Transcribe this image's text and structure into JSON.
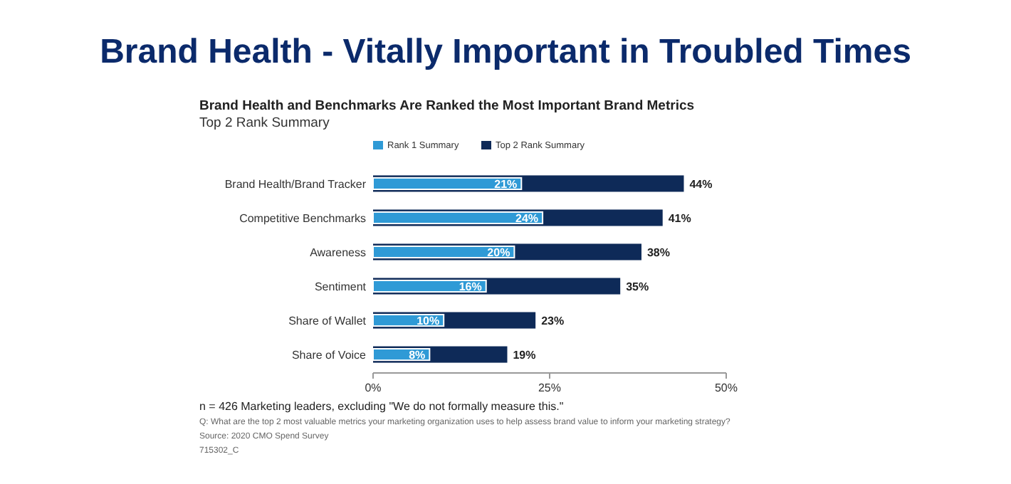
{
  "chart_data": {
    "type": "bar",
    "orientation": "horizontal",
    "title": "Brand Health - Vitally Important in Troubled Times",
    "subtitle": "Brand Health and Benchmarks Are Ranked the Most Important Brand Metrics",
    "categories": [
      "Brand Health/Brand Tracker",
      "Competitive Benchmarks",
      "Awareness",
      "Sentiment",
      "Share of Wallet",
      "Share of Voice"
    ],
    "series": [
      {
        "name": "Rank 1 Summary",
        "color": "#2f9ad6",
        "values": [
          21,
          24,
          20,
          16,
          10,
          8
        ],
        "value_labels": [
          "21%",
          "24%",
          "20%",
          "16%",
          "10%",
          "8%"
        ]
      },
      {
        "name": "Top 2 Rank Summary",
        "color": "#0e2a58",
        "values": [
          44,
          41,
          38,
          35,
          23,
          19
        ],
        "value_labels": [
          "44%",
          "41%",
          "38%",
          "35%",
          "23%",
          "19%"
        ]
      }
    ],
    "xlim": [
      0,
      50
    ],
    "xticks": [
      {
        "value": 0,
        "label": "0%"
      },
      {
        "value": 25,
        "label": "25%"
      },
      {
        "value": 50,
        "label": "50%"
      }
    ],
    "grid": false,
    "legend": "top",
    "annotations": [
      "Top 2 Rank Summary",
      "n = 426 Marketing leaders, excluding \"We do not formally measure this.\"",
      "Q: What are the top 2 most valuable metrics your marketing organization uses to help assess brand value to inform your marketing strategy?",
      "Source: 2020 CMO Spend Survey",
      "715302_C"
    ]
  }
}
